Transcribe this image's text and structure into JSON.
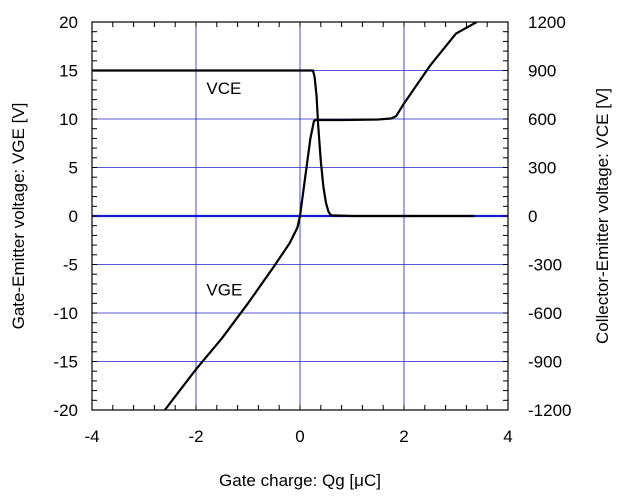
{
  "chart_data": {
    "type": "line",
    "xlabel": "Gate charge: Qg [μC]",
    "ylabel_left": "Gate-Emitter voltage:  VGE [V]",
    "ylabel_right": "Collector-Emitter voltage: VCE [V]",
    "xlim": [
      -4,
      4
    ],
    "ylim_left": [
      -20,
      20
    ],
    "ylim_right": [
      -1200,
      1200
    ],
    "grid": true,
    "x_ticks": [
      "-4",
      "-2",
      "0",
      "2",
      "4"
    ],
    "y_left_ticks": [
      "20",
      "15",
      "10",
      "5",
      "0",
      "-5",
      "-10",
      "-15",
      "-20"
    ],
    "y_right_ticks": [
      "1200",
      "900",
      "600",
      "300",
      "0",
      "-300",
      "-600",
      "-900",
      "-1200"
    ],
    "zero_line_color": "#1a1ad0",
    "grid_color": "#2020c0",
    "series": [
      {
        "name": "VGE",
        "axis": "left",
        "x": [
          -2.6,
          -2.0,
          -1.5,
          -1.0,
          -0.5,
          -0.2,
          -0.05,
          0.0,
          0.1,
          0.2,
          0.27,
          0.3,
          0.4,
          0.8,
          1.5,
          1.75,
          1.85,
          2.0,
          2.5,
          3.0,
          3.4
        ],
        "y": [
          -20,
          -15.8,
          -12.6,
          -9.0,
          -5.2,
          -2.8,
          -1.2,
          0.0,
          4.0,
          8.0,
          9.8,
          9.9,
          9.9,
          9.9,
          9.95,
          10.05,
          10.3,
          11.6,
          15.5,
          18.8,
          20
        ]
      },
      {
        "name": "VCE",
        "axis": "right",
        "x": [
          -4,
          -1,
          0,
          0.25,
          0.28,
          0.32,
          0.35,
          0.4,
          0.45,
          0.5,
          0.55,
          0.6,
          1.0,
          2.0,
          3.0,
          3.35
        ],
        "y": [
          900,
          900,
          900,
          900,
          860,
          740,
          560,
          340,
          180,
          80,
          25,
          4,
          0,
          0,
          0,
          0
        ]
      }
    ],
    "annotations": [
      {
        "text": "VCE",
        "x": -1.8,
        "y": 12.6
      },
      {
        "text": "VGE",
        "x": -1.8,
        "y": -8.2
      }
    ]
  }
}
